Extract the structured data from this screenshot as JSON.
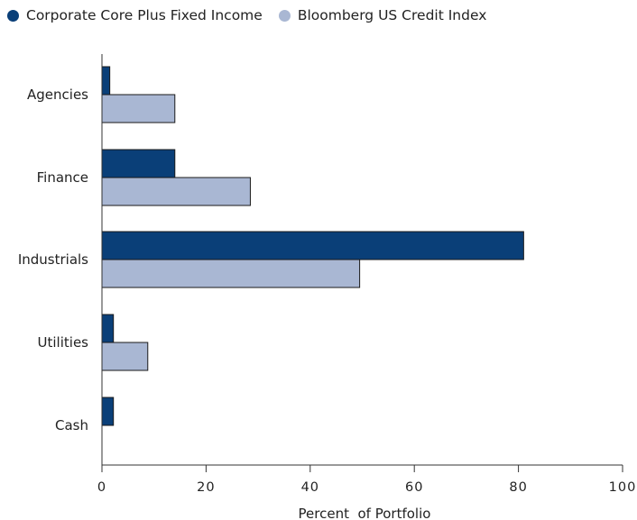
{
  "chart_data": {
    "type": "bar",
    "orientation": "horizontal",
    "categories": [
      "Agencies",
      "Finance",
      "Industrials",
      "Utilities",
      "Cash"
    ],
    "series": [
      {
        "name": "Corporate Core Plus Fixed Income",
        "values": [
          1.5,
          14,
          81,
          2.2,
          2.2
        ],
        "color": "#0a3f78"
      },
      {
        "name": "Bloomberg US Credit Index",
        "values": [
          14,
          28.5,
          49.5,
          8.8,
          0
        ],
        "color": "#a9b7d3"
      }
    ],
    "xlabel": "Percent  of Portfolio",
    "xlim": [
      0,
      100
    ],
    "xticks": [
      0,
      20,
      40,
      60,
      80,
      100
    ],
    "xtick_labels": [
      "0",
      "20",
      "40",
      "60",
      "80",
      "100"
    ],
    "legend_position": "top-left",
    "grid": false
  }
}
